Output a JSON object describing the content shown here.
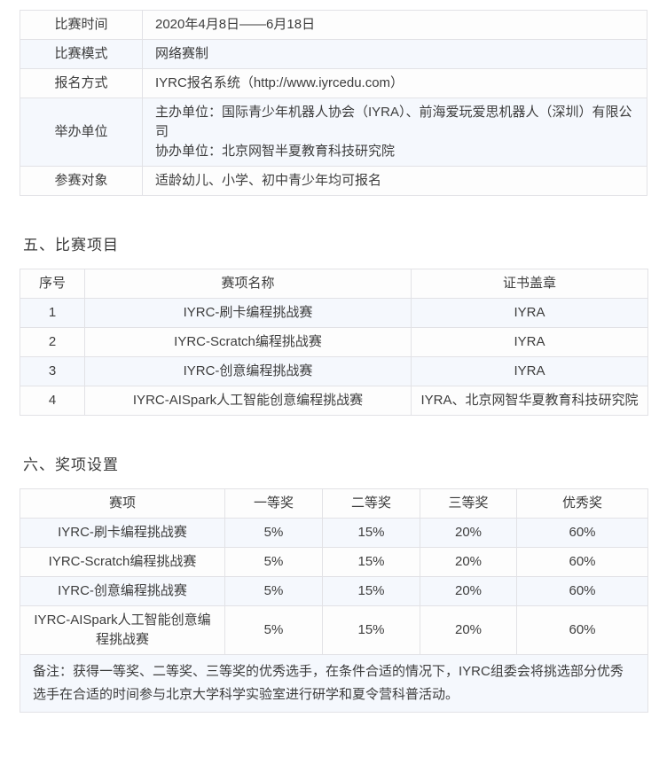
{
  "colors": {
    "row_stripe": "#f5f8fd",
    "row_plain": "#fdfdfd",
    "table_border": "#e2e2e6",
    "text": "#3d3d3d"
  },
  "info_table": {
    "rows": [
      {
        "label": "比赛时间",
        "value": "2020年4月8日——6月18日"
      },
      {
        "label": "比赛模式",
        "value": "网络赛制"
      },
      {
        "label": "报名方式",
        "value": "IYRC报名系统（http://www.iyrcedu.com）"
      },
      {
        "label": "举办单位",
        "value_line1": "主办单位：国际青少年机器人协会（IYRA）、前海爱玩爱思机器人（深圳）有限公司",
        "value_line2": "协办单位：北京网智半夏教育科技研究院"
      },
      {
        "label": "参赛对象",
        "value": "适龄幼儿、小学、初中青少年均可报名"
      }
    ]
  },
  "section_events": {
    "heading": "五、比赛项目",
    "headers": [
      "序号",
      "赛项名称",
      "证书盖章"
    ],
    "rows": [
      {
        "no": "1",
        "name": "IYRC-刷卡编程挑战赛",
        "stamp": "IYRA"
      },
      {
        "no": "2",
        "name": "IYRC-Scratch编程挑战赛",
        "stamp": "IYRA"
      },
      {
        "no": "3",
        "name": "IYRC-创意编程挑战赛",
        "stamp": "IYRA"
      },
      {
        "no": "4",
        "name": "IYRC-AISpark人工智能创意编程挑战赛",
        "stamp": "IYRA、北京网智华夏教育科技研究院"
      }
    ]
  },
  "section_awards": {
    "heading": "六、奖项设置",
    "headers": [
      "赛项",
      "一等奖",
      "二等奖",
      "三等奖",
      "优秀奖"
    ],
    "rows": [
      {
        "event": "IYRC-刷卡编程挑战赛",
        "first": "5%",
        "second": "15%",
        "third": "20%",
        "excellent": "60%"
      },
      {
        "event": "IYRC-Scratch编程挑战赛",
        "first": "5%",
        "second": "15%",
        "third": "20%",
        "excellent": "60%"
      },
      {
        "event": "IYRC-创意编程挑战赛",
        "first": "5%",
        "second": "15%",
        "third": "20%",
        "excellent": "60%"
      },
      {
        "event": "IYRC-AISpark人工智能创意编程挑战赛",
        "first": "5%",
        "second": "15%",
        "third": "20%",
        "excellent": "60%"
      }
    ],
    "note": "备注：获得一等奖、二等奖、三等奖的优秀选手，在条件合适的情况下，IYRC组委会将挑选部分优秀选手在合适的时间参与北京大学科学实验室进行研学和夏令营科普活动。"
  }
}
